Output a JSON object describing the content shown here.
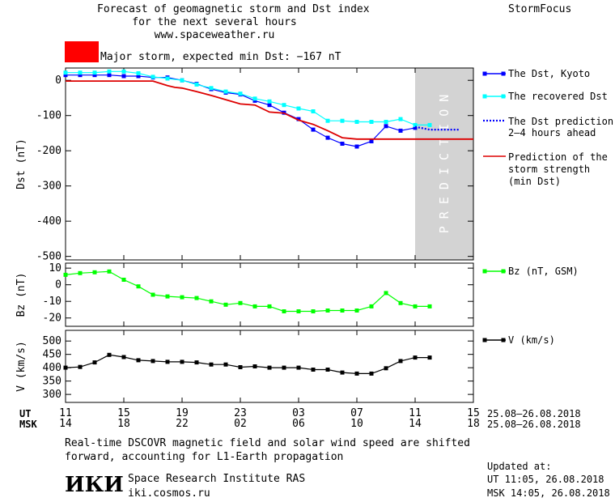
{
  "header": {
    "title_lines": [
      "Forecast of geomagnetic storm and Dst index",
      "for the next several hours",
      "www.spaceweather.ru"
    ],
    "brand": "StormFocus",
    "storm_label": "Major storm, expected min Dst: −167 nT",
    "storm_color": "#ff0000"
  },
  "colors": {
    "dst_kyoto": "#0000ff",
    "recovered": "#00ffff",
    "prediction": "#0000ff",
    "min_dst": "#dd0000",
    "bz": "#00ff00",
    "v": "#000000",
    "prediction_band": "#d3d3d3"
  },
  "legend": {
    "dst_kyoto": "The Dst, Kyoto",
    "recovered": "The recovered Dst",
    "prediction_lines": [
      "The Dst prediction",
      "2–4 hours ahead"
    ],
    "strength_lines": [
      "Prediction of the",
      "storm strength",
      "(min Dst)"
    ],
    "bz": "Bz (nT, GSM)",
    "v": "V (km/s)"
  },
  "prediction_word": "PREDICTION",
  "axis": {
    "ut_label": "UT",
    "msk_label": "MSK",
    "ut_ticks": [
      "11",
      "15",
      "19",
      "23",
      "03",
      "07",
      "11",
      "15"
    ],
    "msk_ticks": [
      "14",
      "18",
      "22",
      "02",
      "06",
      "10",
      "14",
      "18"
    ],
    "date_range_ut": "25.08–26.08.2018",
    "date_range_msk": "25.08–26.08.2018"
  },
  "chart_data": [
    {
      "type": "line",
      "ylabel": "Dst (nT)",
      "ylim": [
        -510,
        35
      ],
      "yticks": [
        0,
        -100,
        -200,
        -300,
        -400,
        -500
      ],
      "xlim": [
        0,
        28
      ],
      "series": [
        {
          "name": "The Dst, Kyoto",
          "x": [
            0,
            1,
            2,
            3,
            4,
            5,
            6,
            7,
            8,
            9,
            10,
            11,
            12,
            13,
            14,
            15,
            16,
            17,
            18,
            19,
            20,
            21,
            22,
            23,
            24
          ],
          "y": [
            15,
            15,
            15,
            15,
            12,
            12,
            8,
            8,
            0,
            -10,
            -25,
            -35,
            -40,
            -58,
            -70,
            -92,
            -110,
            -140,
            -163,
            -180,
            -188,
            -173,
            -130,
            -143,
            -135
          ]
        },
        {
          "name": "The recovered Dst",
          "x": [
            0,
            1,
            2,
            3,
            4,
            5,
            6,
            7,
            8,
            9,
            10,
            11,
            12,
            13,
            14,
            15,
            16,
            17,
            18,
            19,
            20,
            21,
            22,
            23,
            24,
            25
          ],
          "y": [
            22,
            22,
            22,
            25,
            25,
            20,
            10,
            5,
            0,
            -12,
            -22,
            -32,
            -38,
            -52,
            -60,
            -70,
            -80,
            -88,
            -115,
            -115,
            -118,
            -118,
            -118,
            -110,
            -127,
            -127
          ]
        },
        {
          "name": "The Dst prediction 2–4 hours ahead",
          "x": [
            24,
            25,
            26,
            27
          ],
          "y": [
            -132,
            -140,
            -140,
            -140
          ]
        },
        {
          "name": "Prediction of the storm strength (min Dst)",
          "x": [
            0,
            1,
            2,
            3,
            4,
            5,
            6,
            7,
            7.5,
            8,
            9,
            10,
            11,
            12,
            13,
            14,
            15,
            16,
            17,
            18,
            19,
            20,
            21,
            22,
            23,
            24,
            25,
            26,
            27,
            28
          ],
          "y": [
            -2,
            -2,
            -2,
            -2,
            -2,
            -2,
            -2,
            -15,
            -20,
            -22,
            -32,
            -43,
            -55,
            -67,
            -70,
            -90,
            -93,
            -113,
            -125,
            -143,
            -163,
            -167,
            -167,
            -167,
            -167,
            -167,
            -167,
            -167,
            -167,
            -167
          ]
        }
      ]
    },
    {
      "type": "line",
      "ylabel": "Bz (nT)",
      "ylim": [
        -25,
        13
      ],
      "yticks": [
        10,
        0,
        -10,
        -20
      ],
      "xlim": [
        0,
        28
      ],
      "series": [
        {
          "name": "Bz (nT, GSM)",
          "x": [
            0,
            1,
            2,
            3,
            4,
            5,
            6,
            7,
            8,
            9,
            10,
            11,
            12,
            13,
            14,
            15,
            16,
            17,
            18,
            19,
            20,
            21,
            22,
            23,
            24,
            25
          ],
          "y": [
            6,
            7,
            7.5,
            8,
            3,
            -1,
            -6,
            -7,
            -7.5,
            -8,
            -10,
            -12,
            -11,
            -13,
            -13,
            -16,
            -16,
            -16,
            -15.5,
            -15.5,
            -15.5,
            -13,
            -5,
            -11,
            -13,
            -13
          ]
        }
      ]
    },
    {
      "type": "line",
      "ylabel": "V (km/s)",
      "ylim": [
        270,
        540
      ],
      "yticks": [
        500,
        450,
        400,
        350,
        300
      ],
      "xlim": [
        0,
        28
      ],
      "series": [
        {
          "name": "V (km/s)",
          "x": [
            0,
            1,
            2,
            3,
            4,
            5,
            6,
            7,
            8,
            9,
            10,
            11,
            12,
            13,
            14,
            15,
            16,
            17,
            18,
            19,
            20,
            21,
            22,
            23,
            24,
            25
          ],
          "y": [
            400,
            403,
            420,
            448,
            440,
            428,
            425,
            422,
            422,
            420,
            412,
            412,
            402,
            405,
            400,
            400,
            400,
            393,
            393,
            382,
            378,
            378,
            398,
            425,
            438,
            438
          ]
        }
      ]
    }
  ],
  "footer": {
    "note_lines": [
      "Real-time DSCOVR magnetic field and solar wind speed are shifted",
      "forward, accounting for L1-Earth propagation"
    ],
    "logo": "ИКИ",
    "org": "Space Research Institute RAS",
    "site": "iki.cosmos.ru",
    "updated_label": "Updated at:",
    "updated_ut": "UT   11:05, 26.08.2018",
    "updated_msk": "MSK 14:05, 26.08.2018"
  }
}
